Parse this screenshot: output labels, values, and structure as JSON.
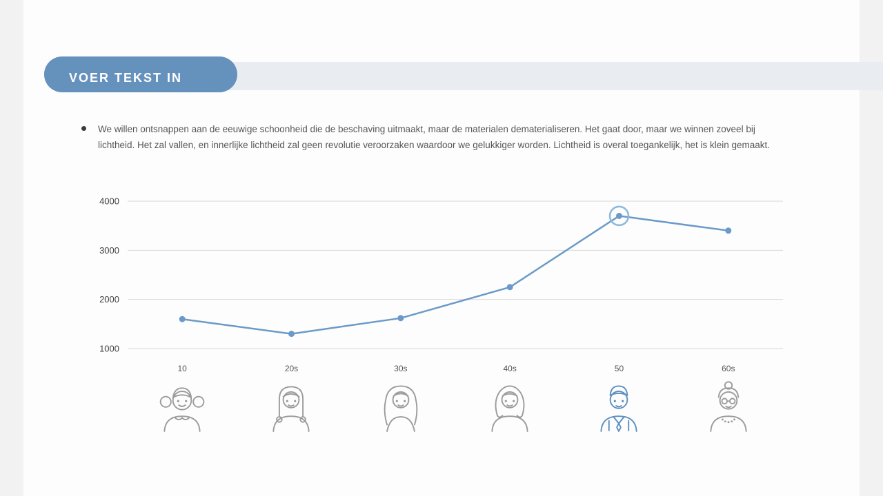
{
  "header": {
    "title": "VOER TEKST IN"
  },
  "body": {
    "bullet_text": "We willen ontsnappen aan de eeuwige schoonheid die de beschaving uitmaakt, maar de materialen dematerialiseren. Het gaat door, maar we winnen zoveel bij lichtheid. Het zal vallen, en innerlijke lichtheid zal geen revolutie veroorzaken waardoor we gelukkiger worden. Lichtheid is overal toegankelijk, het is klein gemaakt."
  },
  "chart_data": {
    "type": "line",
    "title": "",
    "xlabel": "",
    "ylabel": "",
    "categories": [
      "10",
      "20s",
      "30s",
      "40s",
      "50",
      "60s"
    ],
    "values": [
      1600,
      1300,
      1620,
      2250,
      3700,
      3400
    ],
    "highlight_index": 4,
    "yticks": [
      1000,
      2000,
      3000,
      4000
    ],
    "ylim": [
      1000,
      4000
    ],
    "grid": true,
    "legend": "none",
    "icons": [
      "girl-10",
      "woman-20s",
      "woman-30s",
      "woman-40s",
      "man-50",
      "elder-60s"
    ]
  },
  "colors": {
    "accent_blue": "#6591bd",
    "banner_gray": "#e9edf2",
    "line_color": "#6b9ac8",
    "highlight_ring": "#8bb8da",
    "icon_gray": "#9b9b9b",
    "icon_highlight": "#5b8fc0",
    "grid_line": "#d8d8d8",
    "tick_text": "#404040"
  }
}
